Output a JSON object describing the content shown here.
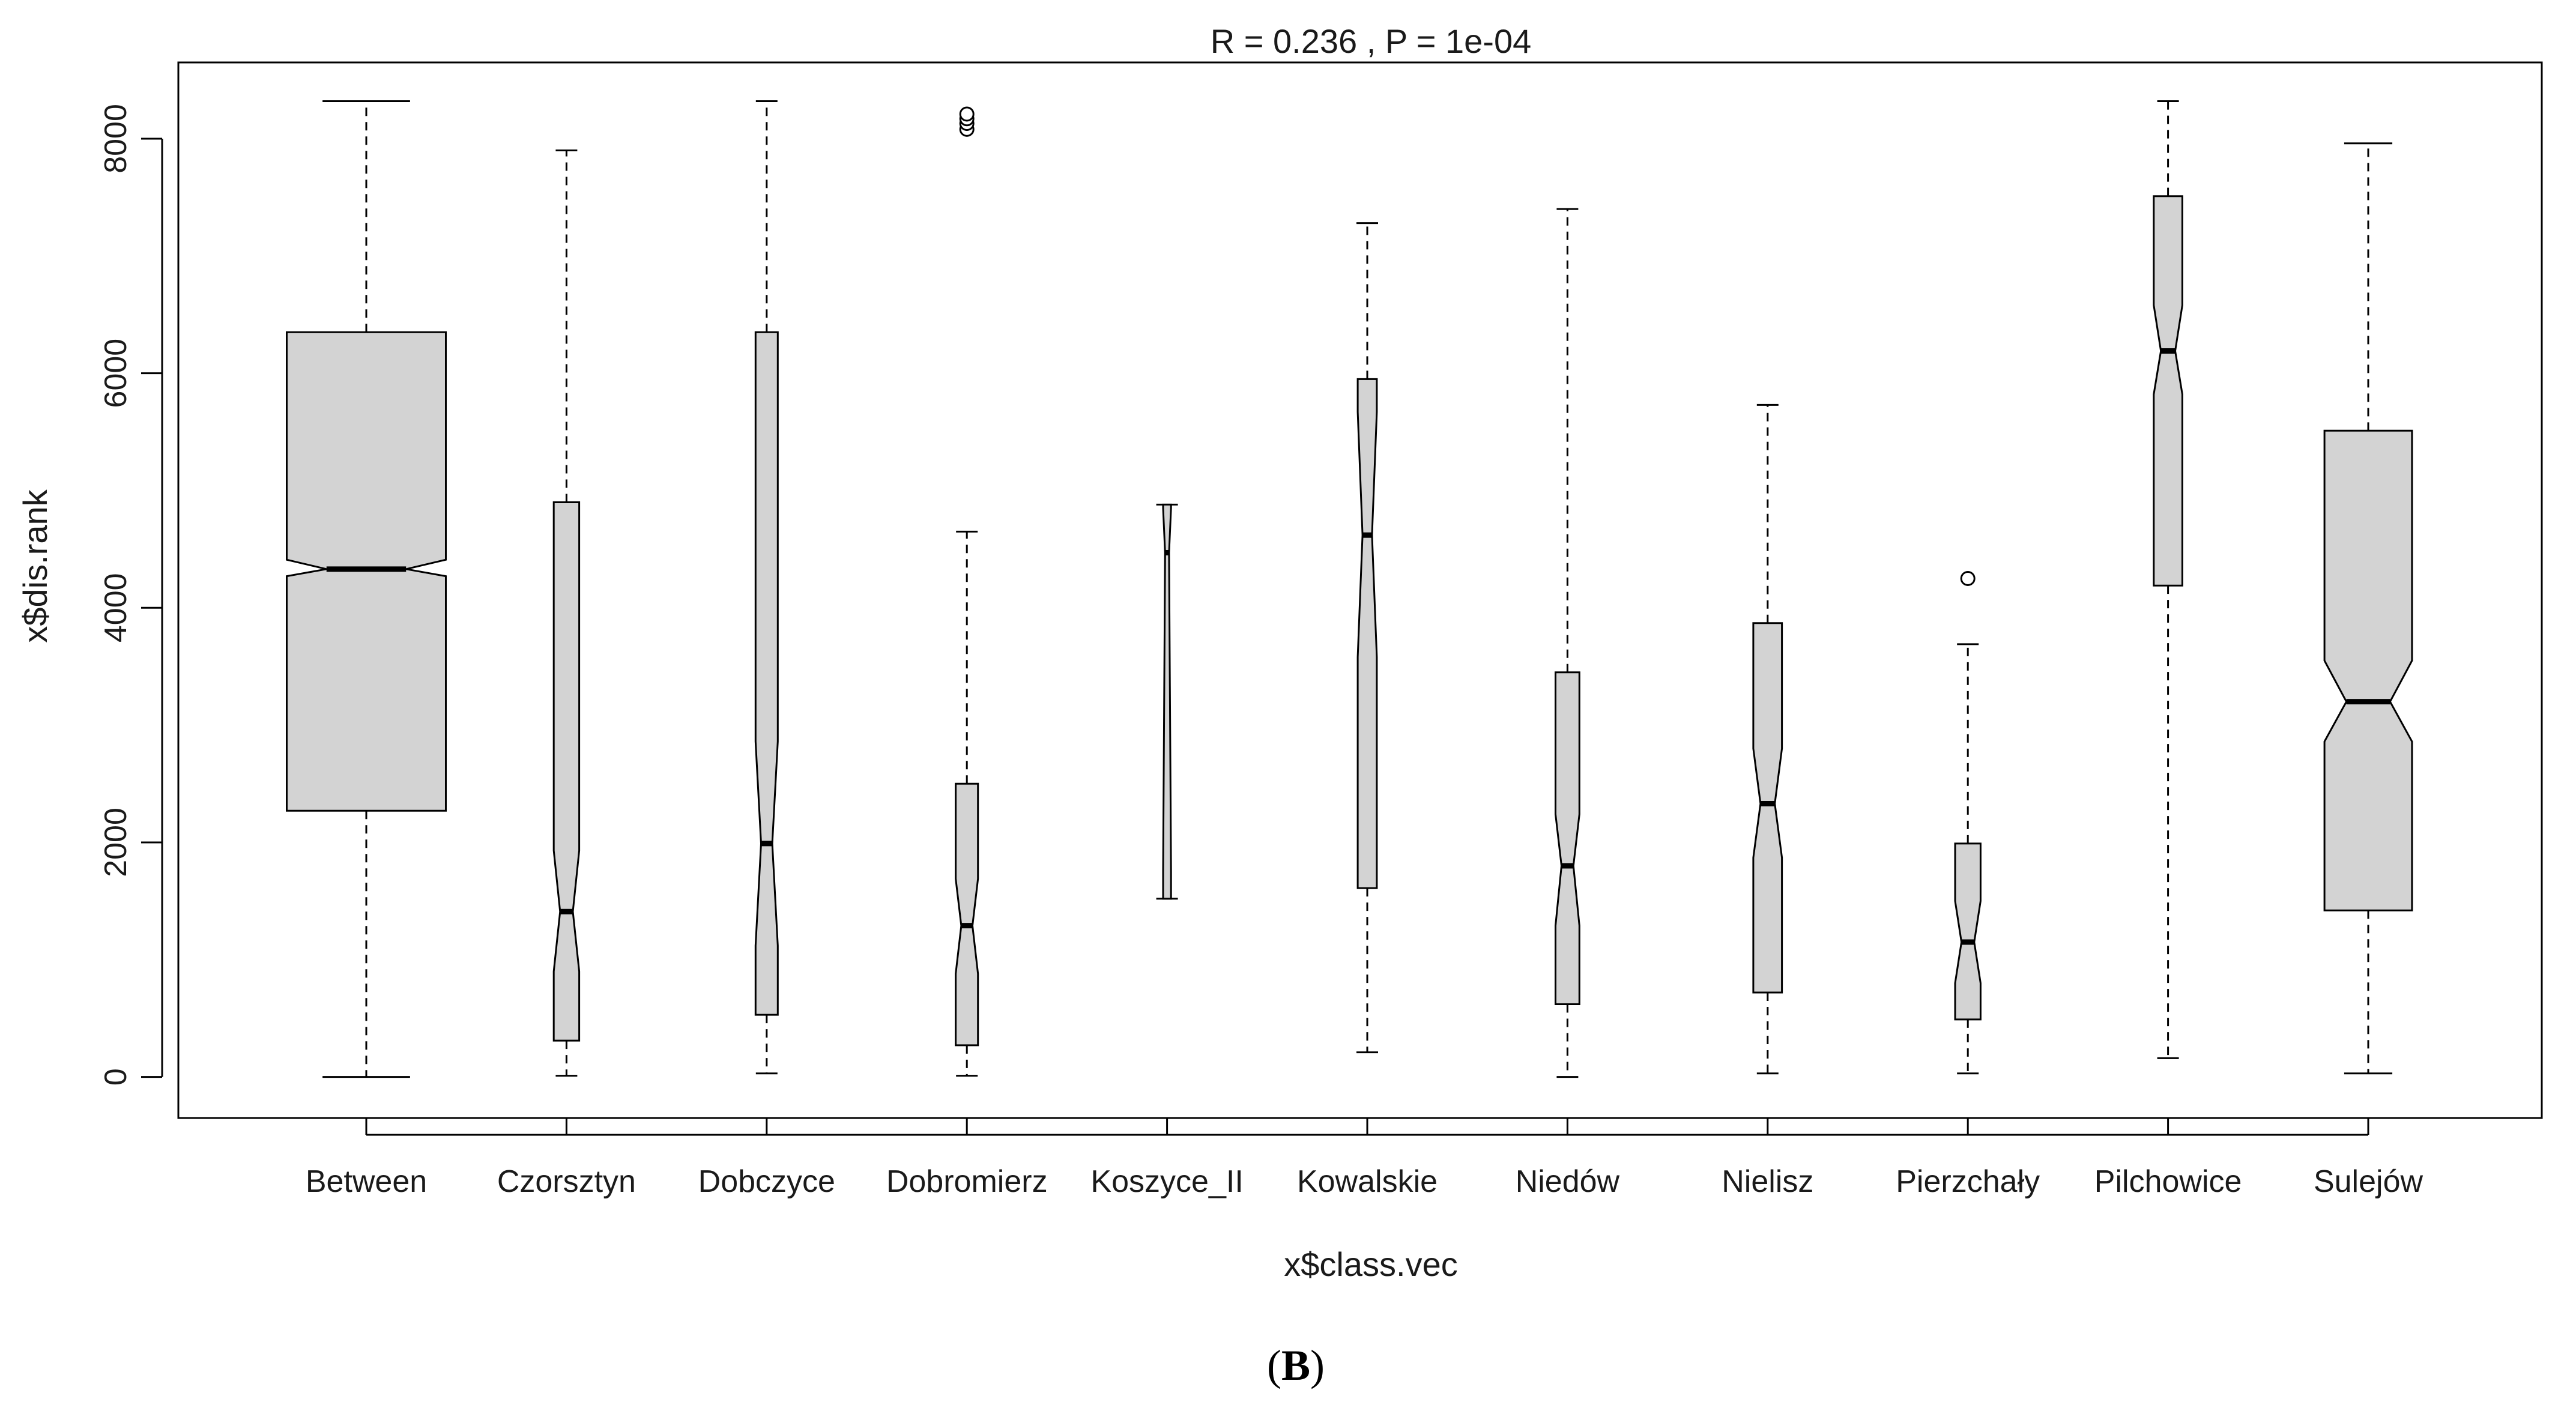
{
  "chart_data": {
    "type": "boxplot",
    "notched": true,
    "title": "R =  0.236 ,  P =  1e-04",
    "xlabel": "x$class.vec",
    "ylabel": "x$dis.rank",
    "ylim": [
      -350,
      8650
    ],
    "yticks": [
      0,
      2000,
      4000,
      6000,
      8000
    ],
    "grid": false,
    "legend": "none",
    "box_fill": "#d3d3d3",
    "categories": [
      "Between",
      "Czorsztyn",
      "Dobczyce",
      "Dobromierz",
      "Koszyce_II",
      "Kowalskie",
      "Niedów",
      "Nielisz",
      "Pierzchały",
      "Pilchowice",
      "Sulejów"
    ],
    "boxes": [
      {
        "name": "Between",
        "whisker_low": 0,
        "q1": 2270,
        "median": 4330,
        "q3": 6350,
        "whisker_high": 8320,
        "notch_low": 4270,
        "notch_high": 4410,
        "relwidth": 1.0,
        "outliers": []
      },
      {
        "name": "Czorsztyn",
        "whisker_low": 10,
        "q1": 310,
        "median": 1410,
        "q3": 4900,
        "whisker_high": 7900,
        "notch_low": 900,
        "notch_high": 1930,
        "relwidth": 0.16,
        "outliers": []
      },
      {
        "name": "Dobczyce",
        "whisker_low": 30,
        "q1": 530,
        "median": 1990,
        "q3": 6350,
        "whisker_high": 8320,
        "notch_low": 1120,
        "notch_high": 2860,
        "relwidth": 0.14,
        "outliers": []
      },
      {
        "name": "Dobromierz",
        "whisker_low": 10,
        "q1": 270,
        "median": 1290,
        "q3": 2500,
        "whisker_high": 4650,
        "notch_low": 880,
        "notch_high": 1690,
        "relwidth": 0.14,
        "outliers": [
          8080,
          8130,
          8170,
          8210
        ]
      },
      {
        "name": "Koszyce_II",
        "whisker_low": 1520,
        "q1": 1520,
        "median": 4470,
        "q3": 4880,
        "whisker_high": 4880,
        "notch_low": 1750,
        "notch_high": 4850,
        "relwidth": 0.05,
        "outliers": []
      },
      {
        "name": "Kowalskie",
        "whisker_low": 210,
        "q1": 1610,
        "median": 4620,
        "q3": 5950,
        "whisker_high": 7280,
        "notch_low": 3580,
        "notch_high": 5670,
        "relwidth": 0.12,
        "outliers": []
      },
      {
        "name": "Niedów",
        "whisker_low": 0,
        "q1": 620,
        "median": 1800,
        "q3": 3450,
        "whisker_high": 7400,
        "notch_low": 1290,
        "notch_high": 2240,
        "relwidth": 0.15,
        "outliers": []
      },
      {
        "name": "Nielisz",
        "whisker_low": 30,
        "q1": 720,
        "median": 2330,
        "q3": 3870,
        "whisker_high": 5730,
        "notch_low": 1870,
        "notch_high": 2800,
        "relwidth": 0.18,
        "outliers": []
      },
      {
        "name": "Pierzchały",
        "whisker_low": 30,
        "q1": 490,
        "median": 1150,
        "q3": 1990,
        "whisker_high": 3690,
        "notch_low": 800,
        "notch_high": 1500,
        "relwidth": 0.16,
        "outliers": [
          4250
        ]
      },
      {
        "name": "Pilchowice",
        "whisker_low": 160,
        "q1": 4190,
        "median": 6190,
        "q3": 7510,
        "whisker_high": 8320,
        "notch_low": 5820,
        "notch_high": 6580,
        "relwidth": 0.18,
        "outliers": []
      },
      {
        "name": "Sulejów",
        "whisker_low": 30,
        "q1": 1420,
        "median": 3200,
        "q3": 5510,
        "whisker_high": 7960,
        "notch_low": 2860,
        "notch_high": 3550,
        "relwidth": 0.55,
        "outliers": []
      }
    ]
  },
  "panel_label": {
    "open": "(",
    "letter": "B",
    "close": ")"
  }
}
